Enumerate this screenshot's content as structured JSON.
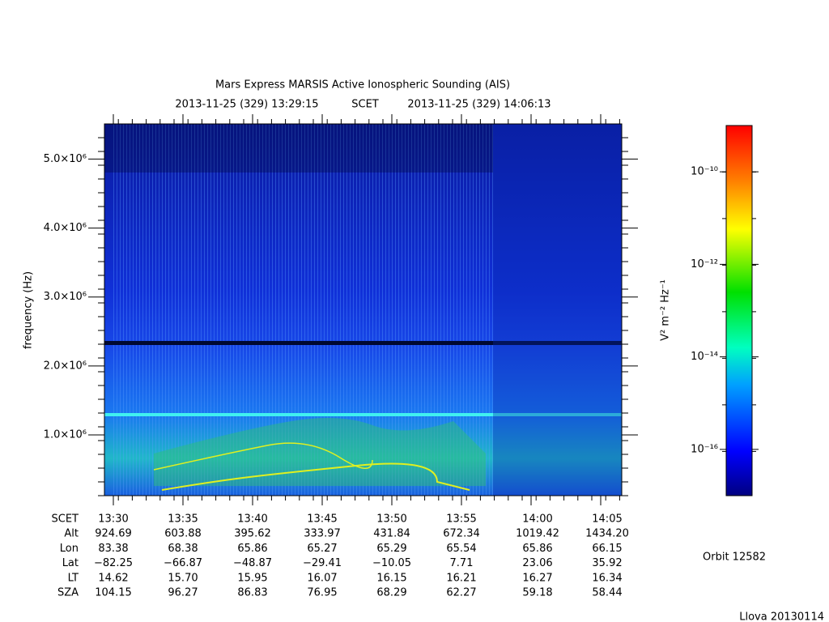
{
  "chart_data": {
    "type": "spectrogram",
    "title": "Mars Express MARSIS Active Ionospheric Sounding (AIS)",
    "start_time": "2013-11-25 (329) 13:29:15",
    "time_system": "SCET",
    "end_time": "2013-11-25 (329) 14:06:13",
    "ylabel": "frequency (Hz)",
    "ylim": [
      120000,
      5510000
    ],
    "yticks": [
      {
        "value": 1000000,
        "label": "1.0×10⁶"
      },
      {
        "value": 2000000,
        "label": "2.0×10⁶"
      },
      {
        "value": 3000000,
        "label": "3.0×10⁶"
      },
      {
        "value": 4000000,
        "label": "4.0×10⁶"
      },
      {
        "value": 5000000,
        "label": "5.0×10⁶"
      }
    ],
    "colorbar": {
      "label": "V² m⁻² Hz⁻¹",
      "log_scale": true,
      "clim": [
        1e-17,
        1e-09
      ],
      "ticks": [
        {
          "value": 1e-10,
          "label": "10⁻¹⁰"
        },
        {
          "value": 1e-12,
          "label": "10⁻¹²"
        },
        {
          "value": 1e-14,
          "label": "10⁻¹⁴"
        },
        {
          "value": 1e-16,
          "label": "10⁻¹⁶"
        }
      ]
    },
    "ephemeris": {
      "rows": [
        [
          "SCET",
          "13:30",
          "13:35",
          "13:40",
          "13:45",
          "13:50",
          "13:55",
          "14:00",
          "14:05"
        ],
        [
          "Alt",
          "924.69",
          "603.88",
          "395.62",
          "333.97",
          "431.84",
          "672.34",
          "1019.42",
          "1434.20"
        ],
        [
          "Lon",
          "83.38",
          "68.38",
          "65.86",
          "65.27",
          "65.29",
          "65.54",
          "65.86",
          "66.15"
        ],
        [
          "Lat",
          "−82.25",
          "−66.87",
          "−48.87",
          "−29.41",
          "−10.05",
          "7.71",
          "23.06",
          "35.92"
        ],
        [
          "LT",
          "14.62",
          "15.70",
          "15.95",
          "16.07",
          "16.15",
          "16.21",
          "16.27",
          "16.34"
        ],
        [
          "SZA",
          "104.15",
          "96.27",
          "86.83",
          "76.95",
          "68.29",
          "62.27",
          "59.18",
          "58.44"
        ]
      ]
    },
    "orbit": "Orbit 12582",
    "footer": "Llova 20130114"
  }
}
